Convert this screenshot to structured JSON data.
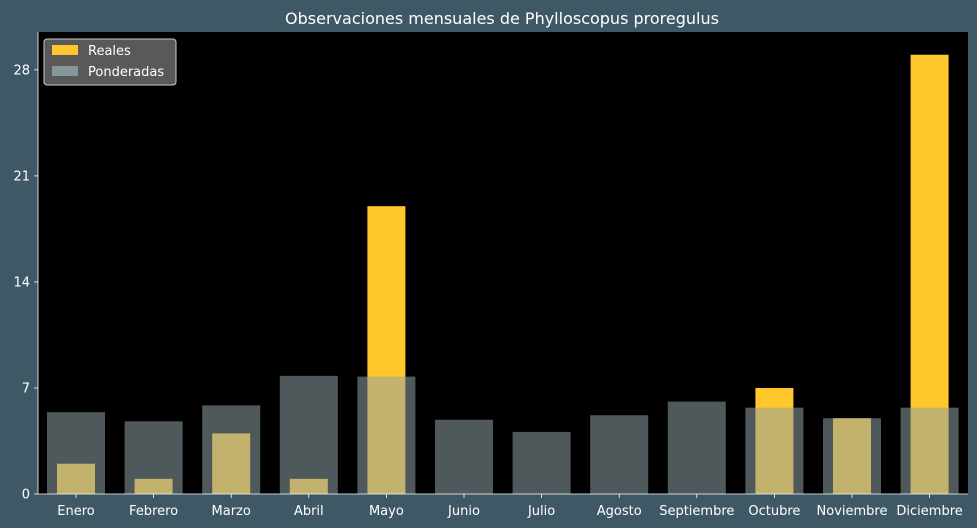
{
  "chart_data": {
    "type": "bar",
    "title": "Observaciones mensuales de Phylloscopus proregulus",
    "xlabel": "",
    "ylabel": "",
    "categories": [
      "Enero",
      "Febrero",
      "Marzo",
      "Abril",
      "Mayo",
      "Junio",
      "Julio",
      "Agosto",
      "Septiembre",
      "Octubre",
      "Noviembre",
      "Diciembre"
    ],
    "series": [
      {
        "name": "Reales",
        "color": "#ffc72c",
        "values": [
          2,
          1,
          4,
          1,
          19,
          0,
          0,
          0,
          0,
          7,
          5,
          29
        ]
      },
      {
        "name": "Ponderadas",
        "color": "#8fa1a6",
        "values": [
          5.4,
          4.8,
          5.85,
          7.8,
          7.75,
          4.9,
          4.1,
          5.2,
          6.1,
          5.7,
          5.0,
          5.7
        ]
      }
    ],
    "ylim": [
      0,
      30.5
    ],
    "yticks": [
      0,
      7,
      14,
      21,
      28
    ],
    "grid": false,
    "legend": "top-left"
  }
}
